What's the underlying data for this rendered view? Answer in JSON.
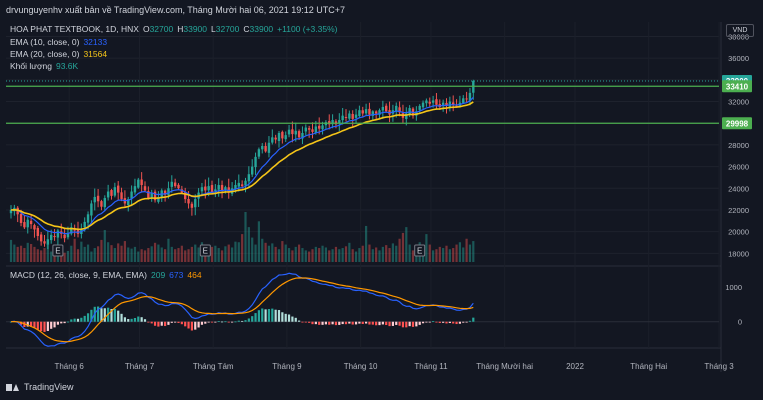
{
  "header": {
    "published": "drvunguyenhv xuất bản về TradingView.com, Tháng Mười hai 06, 2021 19:12 UTC+7"
  },
  "legend": {
    "symbol": "HOA PHAT TEXTBOOK, 1D, HNX",
    "o_label": "O",
    "o": "32700",
    "h_label": "H",
    "h": "33900",
    "l_label": "L",
    "l": "32700",
    "c_label": "C",
    "c": "33900",
    "change": "+1100 (+3.35%)",
    "ema10_label": "EMA (10, close, 0)",
    "ema10": "32133",
    "ema20_label": "EMA (20, close, 0)",
    "ema20": "31564",
    "vol_label": "Khối lượng",
    "vol": "93.6K",
    "macd_label": "MACD (12, 26, close, 9, EMA, EMA)",
    "macd_hist": "209",
    "macd_line": "673",
    "macd_signal": "464"
  },
  "currency": "VND",
  "footer": {
    "brand": "TradingView"
  },
  "colors": {
    "up": "#26a69a",
    "down": "#ef5350",
    "ema10": "#2962ff",
    "ema20": "#f5c518",
    "macd": "#2962ff",
    "signal": "#ff9800",
    "hline": "#4caf50",
    "bg": "#131722"
  },
  "chart_data": {
    "type": "candlestick",
    "price_axis": {
      "ticks": [
        "38000",
        "36000",
        "34000",
        "32000",
        "30000",
        "28000",
        "26000",
        "24000",
        "22000",
        "20000",
        "18000"
      ],
      "range": [
        17200,
        38600
      ]
    },
    "price_labels": [
      {
        "value": 33900,
        "text": "33900",
        "color": "#26a69a"
      },
      {
        "value": 33410,
        "text": "33410",
        "color": "#4caf50"
      },
      {
        "value": 29998,
        "text": "29998",
        "color": "#4caf50"
      }
    ],
    "horizontal_lines": [
      33410,
      29998
    ],
    "x_labels": [
      "Tháng 6",
      "Tháng 7",
      "Tháng Tám",
      "Tháng 9",
      "Tháng 10",
      "Tháng 11",
      "Tháng Mười hai",
      "2022",
      "Tháng Hai",
      "Tháng 3"
    ],
    "x_label_index": [
      9,
      30,
      52,
      74,
      96,
      117,
      139,
      160,
      182,
      203
    ],
    "macd_axis": {
      "ticks": [
        "1000",
        "0"
      ],
      "range": [
        -700,
        1550
      ]
    },
    "event_markers": [
      {
        "index": 14,
        "text": "E"
      },
      {
        "index": 58,
        "text": "E"
      },
      {
        "index": 122,
        "text": "E"
      }
    ],
    "closes": [
      22000,
      22200,
      21600,
      20800,
      20400,
      21100,
      20700,
      20200,
      19600,
      19100,
      18900,
      19300,
      19700,
      19500,
      20100,
      19800,
      19400,
      19900,
      20400,
      20100,
      19800,
      20300,
      20900,
      21600,
      22600,
      23200,
      22800,
      22300,
      23100,
      23700,
      23300,
      24100,
      23600,
      23000,
      22600,
      23000,
      23700,
      24200,
      24800,
      24300,
      23800,
      23100,
      23600,
      22900,
      23200,
      23800,
      23400,
      24000,
      24600,
      24200,
      24000,
      23600,
      23000,
      22600,
      22200,
      23000,
      23600,
      24100,
      23800,
      24200,
      23600,
      23900,
      24300,
      23800,
      24100,
      23600,
      24000,
      24300,
      24500,
      24200,
      24700,
      25300,
      26000,
      26900,
      27600,
      27900,
      27400,
      28200,
      28700,
      28500,
      29100,
      28600,
      28900,
      29400,
      29000,
      29300,
      28700,
      29100,
      29600,
      29400,
      29200,
      29700,
      29500,
      29800,
      30100,
      29900,
      30300,
      29900,
      30300,
      30700,
      30500,
      30900,
      30400,
      30800,
      31200,
      30900,
      31300,
      30800,
      31100,
      30900,
      31200,
      31500,
      31100,
      30800,
      31200,
      31600,
      31000,
      30500,
      30900,
      31400,
      30700,
      31100,
      31600,
      31900,
      32100,
      31800,
      32100,
      31700,
      31500,
      31900,
      31600,
      32000,
      31700,
      31600,
      31900,
      32300,
      32200,
      32800,
      33900
    ],
    "volumes": [
      38,
      30,
      26,
      28,
      24,
      33,
      31,
      26,
      22,
      20,
      24,
      30,
      18,
      22,
      27,
      20,
      16,
      19,
      28,
      40,
      22,
      35,
      26,
      30,
      18,
      24,
      27,
      38,
      55,
      34,
      29,
      24,
      32,
      28,
      36,
      25,
      23,
      26,
      18,
      22,
      20,
      24,
      27,
      33,
      30,
      25,
      22,
      40,
      26,
      22,
      24,
      28,
      20,
      22,
      26,
      30,
      25,
      34,
      24,
      22,
      26,
      28,
      24,
      20,
      27,
      30,
      25,
      35,
      34,
      48,
      86,
      60,
      42,
      30,
      70,
      40,
      33,
      28,
      32,
      26,
      22,
      36,
      30,
      24,
      20,
      26,
      30,
      24,
      20,
      18,
      22,
      26,
      24,
      28,
      25,
      20,
      22,
      26,
      22,
      24,
      27,
      33,
      22,
      18,
      24,
      28,
      62,
      30,
      22,
      25,
      20,
      26,
      29,
      24,
      32,
      28,
      40,
      50,
      60,
      30,
      20,
      24,
      34,
      28,
      48,
      30,
      20,
      22,
      26,
      24,
      28,
      22,
      24,
      30,
      34,
      25,
      40,
      30,
      36
    ]
  }
}
